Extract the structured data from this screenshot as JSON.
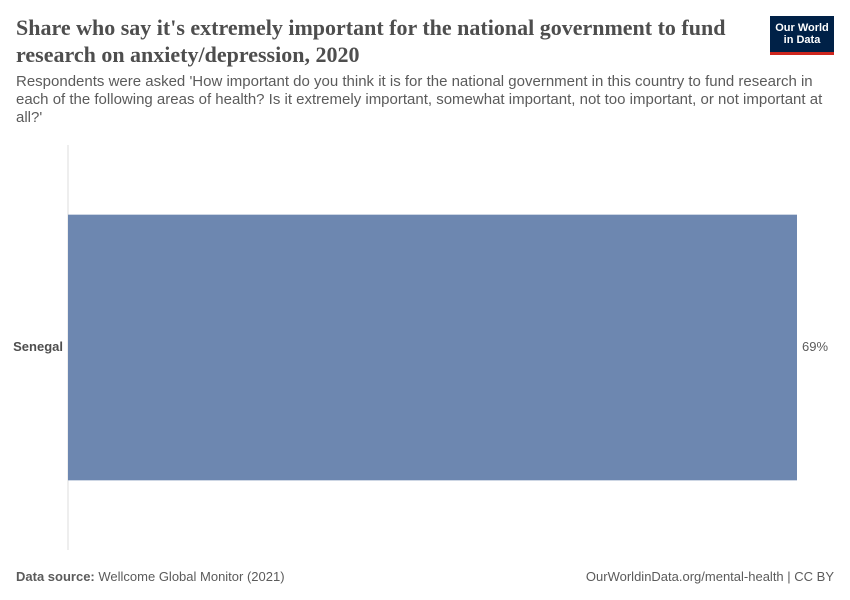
{
  "chart_data": {
    "type": "bar",
    "orientation": "horizontal",
    "title": "Share who say it's extremely important for the national government to fund research on anxiety/depression, 2020",
    "subtitle": "Respondents were asked 'How important do you think it is for the national government in this country to fund research in each of the following areas of health? Is it extremely important, somewhat important, not too important, or not important at all?'",
    "categories": [
      "Senegal"
    ],
    "values": [
      69
    ],
    "value_labels": [
      "69%"
    ],
    "color": "#6d87b0",
    "xlim": [
      0,
      69
    ],
    "source_label": "Data source:",
    "source": "Wellcome Global Monitor (2021)",
    "url": "OurWorldinData.org/mental-health | CC BY",
    "logo": [
      "Our World",
      "in Data"
    ]
  }
}
